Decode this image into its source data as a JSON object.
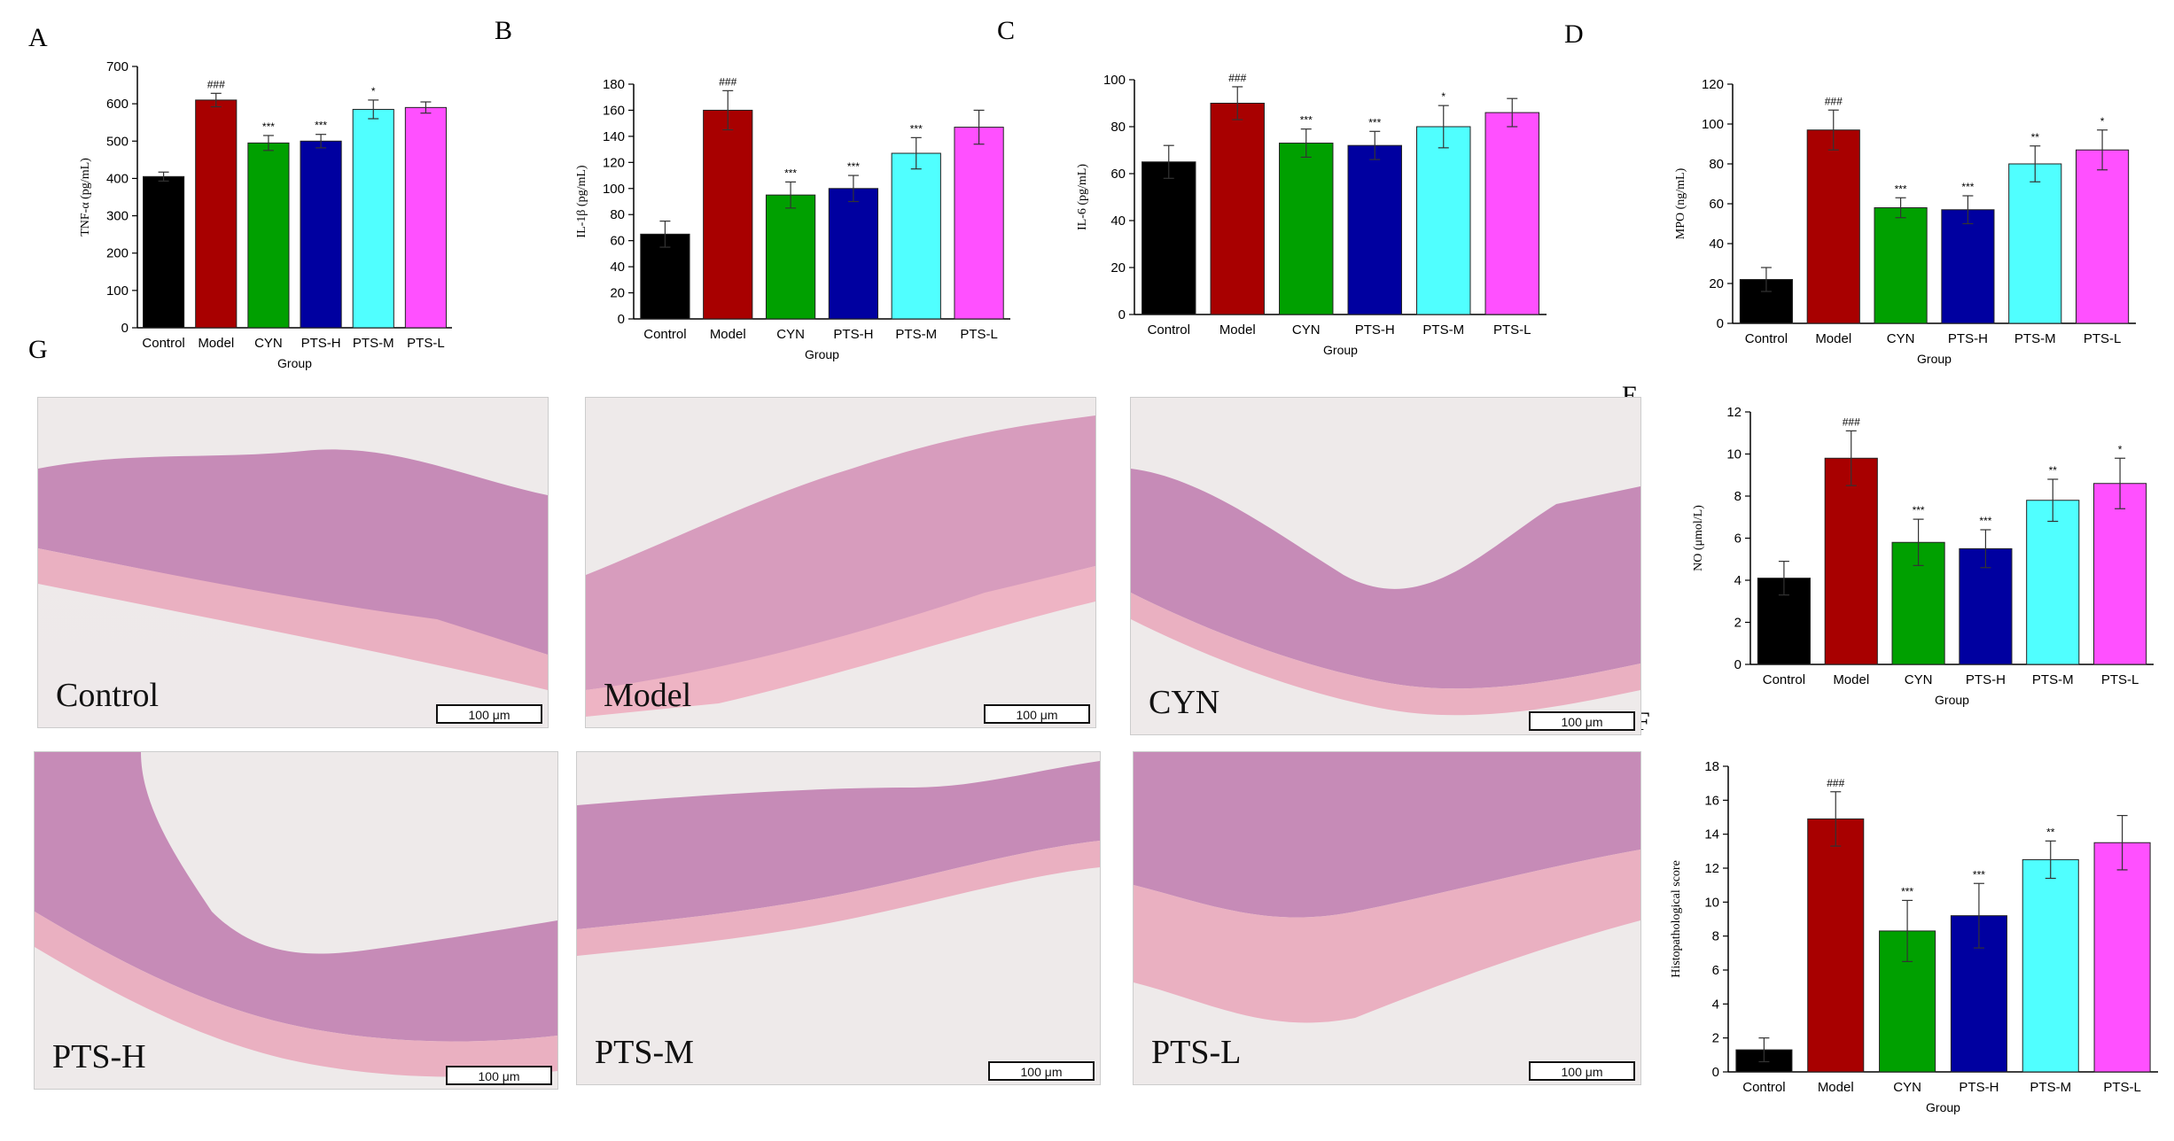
{
  "panel_letters": {
    "a": "A",
    "b": "B",
    "c": "C",
    "d": "D",
    "e": "E",
    "f": "F",
    "g": "G"
  },
  "colors": [
    "#000000",
    "#a80000",
    "#00a000",
    "#0000a0",
    "#50ffff",
    "#ff50ff"
  ],
  "micrographs": [
    {
      "label": "Control",
      "scale": "100 μm"
    },
    {
      "label": "Model",
      "scale": "100 μm"
    },
    {
      "label": "CYN",
      "scale": "100 μm"
    },
    {
      "label": "PTS-H",
      "scale": "100 μm"
    },
    {
      "label": "PTS-M",
      "scale": "100 μm"
    },
    {
      "label": "PTS-L",
      "scale": "100 μm"
    }
  ],
  "chart_data": [
    {
      "panel": "A",
      "type": "bar",
      "categories": [
        "Control",
        "Model",
        "CYN",
        "PTS-H",
        "PTS-M",
        "PTS-L"
      ],
      "values": [
        405,
        610,
        495,
        500,
        585,
        590
      ],
      "errors": [
        12,
        18,
        20,
        18,
        25,
        15
      ],
      "annotations": [
        "",
        "###",
        "***",
        "***",
        "*",
        ""
      ],
      "xlabel": "Group",
      "ylabel": "TNF-α (pg/mL)",
      "ylim": [
        0,
        700
      ],
      "yticks": [
        0,
        100,
        200,
        300,
        400,
        500,
        600,
        700
      ]
    },
    {
      "panel": "B",
      "type": "bar",
      "categories": [
        "Control",
        "Model",
        "CYN",
        "PTS-H",
        "PTS-M",
        "PTS-L"
      ],
      "values": [
        65,
        160,
        95,
        100,
        127,
        147
      ],
      "errors": [
        10,
        15,
        10,
        10,
        12,
        13
      ],
      "annotations": [
        "",
        "###",
        "***",
        "***",
        "***",
        ""
      ],
      "xlabel": "Group",
      "ylabel": "IL-1β (pg/mL)",
      "ylim": [
        0,
        180
      ],
      "yticks": [
        0,
        20,
        40,
        60,
        80,
        100,
        120,
        140,
        160,
        180
      ]
    },
    {
      "panel": "C",
      "type": "bar",
      "categories": [
        "Control",
        "Model",
        "CYN",
        "PTS-H",
        "PTS-M",
        "PTS-L"
      ],
      "values": [
        65,
        90,
        73,
        72,
        80,
        86
      ],
      "errors": [
        7,
        7,
        6,
        6,
        9,
        6
      ],
      "annotations": [
        "",
        "###",
        "***",
        "***",
        "*",
        ""
      ],
      "xlabel": "Group",
      "ylabel": "IL-6 (pg/mL)",
      "ylim": [
        0,
        100
      ],
      "yticks": [
        0,
        20,
        40,
        60,
        80,
        100
      ]
    },
    {
      "panel": "D",
      "type": "bar",
      "categories": [
        "Control",
        "Model",
        "CYN",
        "PTS-H",
        "PTS-M",
        "PTS-L"
      ],
      "values": [
        22,
        97,
        58,
        57,
        80,
        87
      ],
      "errors": [
        6,
        10,
        5,
        7,
        9,
        10
      ],
      "annotations": [
        "",
        "###",
        "***",
        "***",
        "**",
        "*"
      ],
      "xlabel": "Group",
      "ylabel": "MPO (ng/mL)",
      "ylim": [
        0,
        120
      ],
      "yticks": [
        0,
        20,
        40,
        60,
        80,
        100,
        120
      ]
    },
    {
      "panel": "E",
      "type": "bar",
      "categories": [
        "Control",
        "Model",
        "CYN",
        "PTS-H",
        "PTS-M",
        "PTS-L"
      ],
      "values": [
        4.1,
        9.8,
        5.8,
        5.5,
        7.8,
        8.6
      ],
      "errors": [
        0.8,
        1.3,
        1.1,
        0.9,
        1.0,
        1.2
      ],
      "annotations": [
        "",
        "###",
        "***",
        "***",
        "**",
        "*"
      ],
      "xlabel": "Group",
      "ylabel": "NO (μmol/L)",
      "ylim": [
        0,
        12
      ],
      "yticks": [
        0,
        2,
        4,
        6,
        8,
        10,
        12
      ]
    },
    {
      "panel": "F",
      "type": "bar",
      "categories": [
        "Control",
        "Model",
        "CYN",
        "PTS-H",
        "PTS-M",
        "PTS-L"
      ],
      "values": [
        1.3,
        14.9,
        8.3,
        9.2,
        12.5,
        13.5
      ],
      "errors": [
        0.7,
        1.6,
        1.8,
        1.9,
        1.1,
        1.6
      ],
      "annotations": [
        "",
        "###",
        "***",
        "***",
        "**",
        ""
      ],
      "xlabel": "Group",
      "ylabel": "Histopathological score",
      "ylim": [
        0,
        18
      ],
      "yticks": [
        0,
        2,
        4,
        6,
        8,
        10,
        12,
        14,
        16,
        18
      ]
    }
  ]
}
